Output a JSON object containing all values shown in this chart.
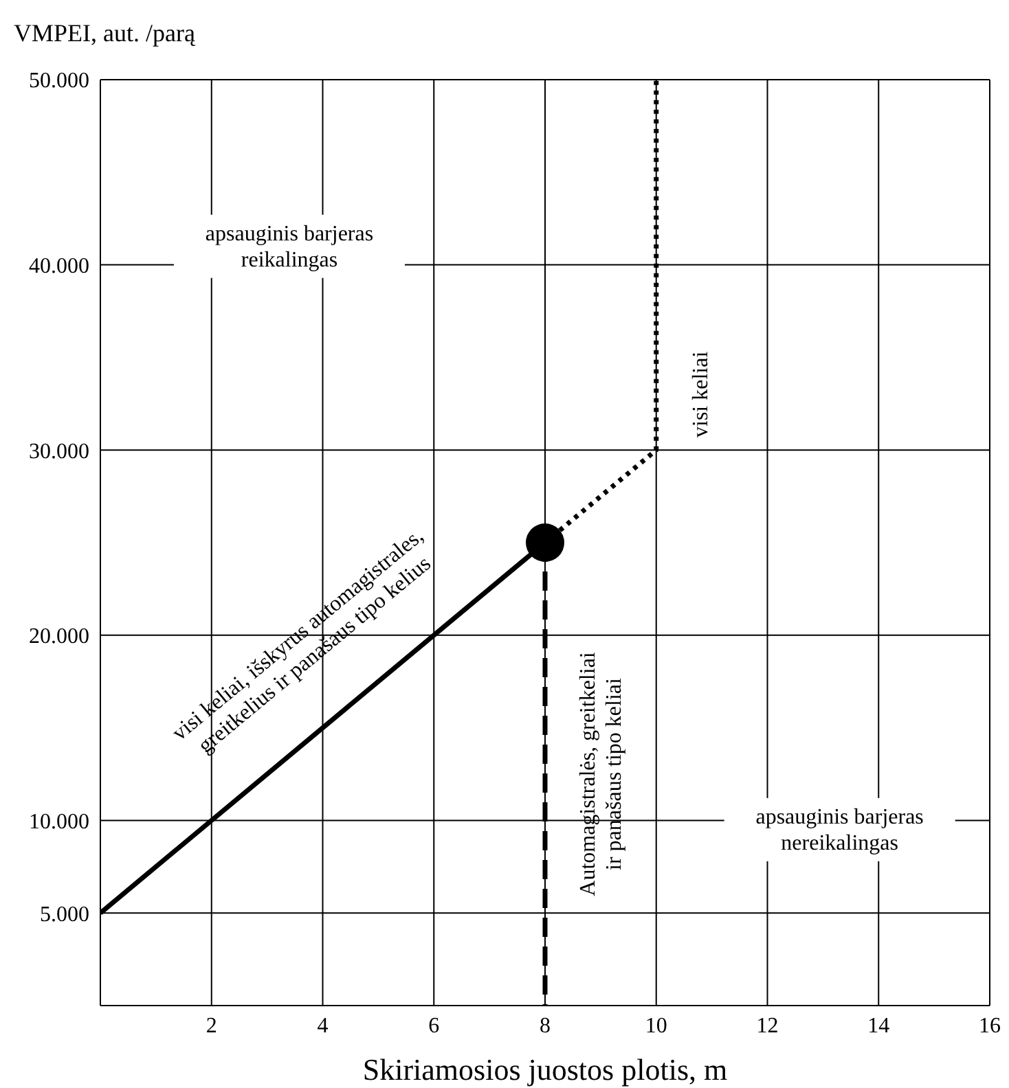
{
  "chart_data": {
    "type": "line",
    "ylabel": "VMPEI, aut. /parą",
    "xlabel": "Skiriamosios juostos plotis, m",
    "xlim": [
      0,
      16
    ],
    "xticks": [
      2,
      4,
      6,
      8,
      10,
      12,
      14,
      16
    ],
    "ylim": [
      0,
      50000
    ],
    "yticks": [
      {
        "value": 5000,
        "label": "5.000"
      },
      {
        "value": 10000,
        "label": "10.000"
      },
      {
        "value": 20000,
        "label": "20.000"
      },
      {
        "value": 30000,
        "label": "30.000"
      },
      {
        "value": 40000,
        "label": "40.000"
      },
      {
        "value": 50000,
        "label": "50.000"
      }
    ],
    "grid": true,
    "series": [
      {
        "color": "#000000",
        "line_style": "solid",
        "marker": "none",
        "x": [
          0,
          8
        ],
        "values": [
          5000,
          25000
        ]
      },
      {
        "color": "#000000",
        "line_style": "dotted",
        "marker": "none",
        "x": [
          8,
          10,
          10
        ],
        "values": [
          25000,
          30000,
          50000
        ]
      },
      {
        "color": "#000000",
        "line_style": "dashed",
        "marker": "none",
        "x": [
          8,
          8
        ],
        "values": [
          25000,
          0
        ]
      },
      {
        "type": "scatter",
        "color": "#000000",
        "marker": "circle",
        "x": [
          8
        ],
        "values": [
          25000
        ]
      }
    ],
    "annotations": [
      "apsauginis barjeras reikalingas",
      "apsauginis barjeras nereikalingas",
      "visi keliai",
      "visi keliai, išskyrus automagistrales, greitkelius ir panašaus tipo kelius",
      "Automagistralės, greitkeliai ir panašaus tipo keliai"
    ]
  }
}
